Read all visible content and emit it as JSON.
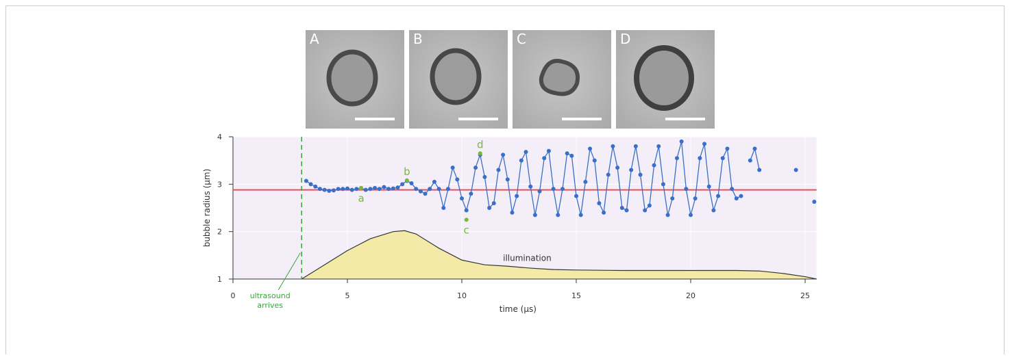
{
  "panels": [
    "A",
    "B",
    "C",
    "D"
  ],
  "chart_data": {
    "type": "line",
    "xlabel": "time (µs)",
    "ylabel": "bubble radius (µm)",
    "xlim": [
      0,
      25.5
    ],
    "ylim": [
      1,
      4
    ],
    "xticks": [
      0,
      5,
      10,
      15,
      20,
      25
    ],
    "yticks": [
      1,
      2,
      3,
      4
    ],
    "grid": true,
    "reference_line": {
      "value": 2.88,
      "color": "#e8505b"
    },
    "arrival": {
      "value": 3.0,
      "label": "ultrasound arrives",
      "color": "#3aa23a"
    },
    "series": [
      {
        "color": "#3a6fc8",
        "x": [
          3.2,
          3.4,
          3.6,
          3.8,
          4.0,
          4.2,
          4.4,
          4.6,
          4.8,
          5.0,
          5.2,
          5.4,
          5.6,
          5.8,
          6.0,
          6.2,
          6.4,
          6.6,
          6.8,
          7.0,
          7.2,
          7.4,
          7.6,
          7.8,
          8.0,
          8.2,
          8.4,
          8.6,
          8.8,
          9.0,
          9.2,
          9.4,
          9.6,
          9.8,
          10.0,
          10.2,
          10.4,
          10.6,
          10.8,
          11.0,
          11.2,
          11.4,
          11.6,
          11.8,
          12.0,
          12.2,
          12.4,
          12.6,
          12.8,
          13.0,
          13.2,
          13.4,
          13.6,
          13.8,
          14.0,
          14.2,
          14.4,
          14.6,
          14.8,
          15.0,
          15.2,
          15.4,
          15.6,
          15.8,
          16.0,
          16.2,
          16.4,
          16.6,
          16.8,
          17.0,
          17.2,
          17.4,
          17.6,
          17.8,
          18.0,
          18.2,
          18.4,
          18.6,
          18.8,
          19.0,
          19.2,
          19.4,
          19.6,
          19.8,
          20.0,
          20.2,
          20.4,
          20.6,
          20.8,
          21.0,
          21.2,
          21.4,
          21.6,
          21.8,
          22.0,
          22.2,
          22.4,
          22.6,
          22.8,
          23.0,
          23.8,
          24.6,
          25.0,
          25.4
        ],
        "values": [
          3.07,
          3.0,
          2.95,
          2.9,
          2.88,
          2.86,
          2.87,
          2.9,
          2.9,
          2.91,
          2.88,
          2.9,
          2.92,
          2.88,
          2.9,
          2.92,
          2.9,
          2.94,
          2.9,
          2.91,
          2.93,
          3.0,
          3.07,
          3.02,
          2.9,
          2.85,
          2.8,
          2.9,
          3.05,
          2.9,
          2.5,
          2.9,
          3.35,
          3.1,
          2.7,
          2.45,
          2.8,
          3.35,
          3.62,
          3.15,
          2.5,
          2.6,
          3.3,
          3.62,
          3.1,
          2.4,
          2.75,
          3.5,
          3.68,
          2.95,
          2.35,
          2.85,
          3.55,
          3.7,
          2.9,
          2.35,
          2.9,
          3.65,
          3.6,
          2.75,
          2.35,
          3.05,
          3.75,
          3.5,
          2.6,
          2.4,
          3.2,
          3.8,
          3.35,
          2.5,
          2.45,
          3.3,
          3.8,
          3.2,
          2.45,
          2.55,
          3.4,
          3.8,
          3.0,
          2.35,
          2.7,
          3.55,
          3.9,
          2.9,
          2.35,
          2.7,
          3.55,
          3.85,
          2.95,
          2.45,
          2.75,
          3.55,
          3.75,
          2.9,
          2.7,
          2.75,
          null,
          3.5,
          3.75,
          3.3,
          null,
          3.3,
          null,
          2.63
        ]
      }
    ],
    "annotations": [
      {
        "text": "a",
        "x": 5.6,
        "y": 2.92,
        "color": "#7ab83a"
      },
      {
        "text": "b",
        "x": 7.6,
        "y": 3.08,
        "color": "#7ab83a"
      },
      {
        "text": "c",
        "x": 10.2,
        "y": 2.25,
        "color": "#7ab83a"
      },
      {
        "text": "d",
        "x": 10.8,
        "y": 3.65,
        "color": "#7ab83a"
      }
    ],
    "illumination": {
      "label": "illumination",
      "color": "#f2eaa6",
      "x": [
        3.0,
        4,
        5,
        6,
        7,
        7.5,
        8,
        9,
        10,
        11,
        12,
        13,
        14,
        15,
        17,
        20,
        22,
        23,
        24,
        25,
        25.5
      ],
      "values": [
        1.0,
        1.3,
        1.6,
        1.85,
        2.0,
        2.02,
        1.95,
        1.65,
        1.4,
        1.3,
        1.27,
        1.23,
        1.2,
        1.19,
        1.18,
        1.18,
        1.18,
        1.17,
        1.12,
        1.05,
        1.0
      ]
    }
  }
}
